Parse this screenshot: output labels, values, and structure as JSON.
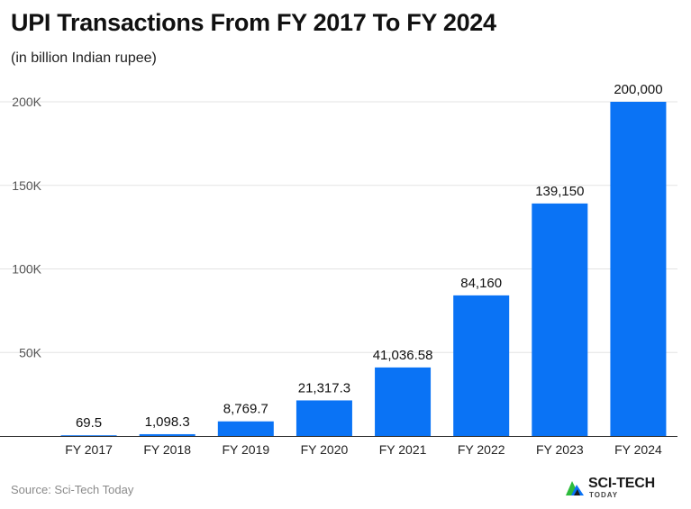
{
  "chart_data": {
    "type": "bar",
    "title": "UPI Transactions From FY 2017 To FY 2024",
    "subtitle": "(in billion Indian rupee)",
    "categories": [
      "FY 2017",
      "FY 2018",
      "FY 2019",
      "FY 2020",
      "FY 2021",
      "FY 2022",
      "FY 2023",
      "FY 2024"
    ],
    "values": [
      69.5,
      1098.3,
      8769.7,
      21317.3,
      41036.58,
      84160,
      139150,
      200000
    ],
    "data_labels": [
      "69.5",
      "1,098.3",
      "8,769.7",
      "21,317.3",
      "41,036.58",
      "84,160",
      "139,150",
      "200,000"
    ],
    "yticks": [
      50000,
      100000,
      150000,
      200000
    ],
    "ytick_labels": [
      "50K",
      "100K",
      "150K",
      "200K"
    ],
    "ylim": [
      0,
      200000
    ],
    "xlabel": "",
    "ylabel": "",
    "grid": true,
    "legend": "none",
    "bar_color": "#0a73f5"
  },
  "footer": {
    "source": "Source: Sci-Tech Today",
    "logo_main": "SCI-TECH",
    "logo_sub": "TODAY"
  },
  "logo_colors": {
    "green": "#2dbb3c",
    "blue": "#0a73f5",
    "dark": "#1a1a1a"
  },
  "logo_icon": "sci-tech-logo-icon"
}
